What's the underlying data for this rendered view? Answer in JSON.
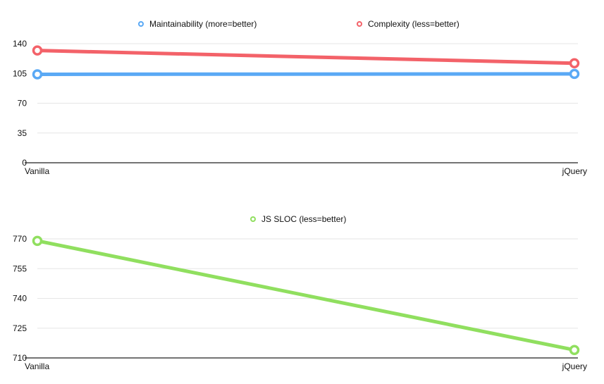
{
  "chart_data": [
    {
      "type": "line",
      "categories": [
        "Vanilla",
        "jQuery"
      ],
      "series": [
        {
          "name": "Maintainability (more=better)",
          "color": "#5aa9f5",
          "values": [
            104,
            104.5
          ]
        },
        {
          "name": "Complexity (less=better)",
          "color": "#f36269",
          "values": [
            132,
            117
          ]
        }
      ],
      "ylim": [
        0,
        140
      ],
      "yticks": [
        0,
        35,
        70,
        105,
        140
      ],
      "grid": true,
      "legend": "top-center"
    },
    {
      "type": "line",
      "categories": [
        "Vanilla",
        "jQuery"
      ],
      "series": [
        {
          "name": "JS SLOC (less=better)",
          "color": "#90df5f",
          "values": [
            769,
            714
          ]
        }
      ],
      "ylim": [
        710,
        770
      ],
      "yticks": [
        710,
        725,
        740,
        755,
        770
      ],
      "grid": true,
      "legend": "top-center"
    }
  ]
}
